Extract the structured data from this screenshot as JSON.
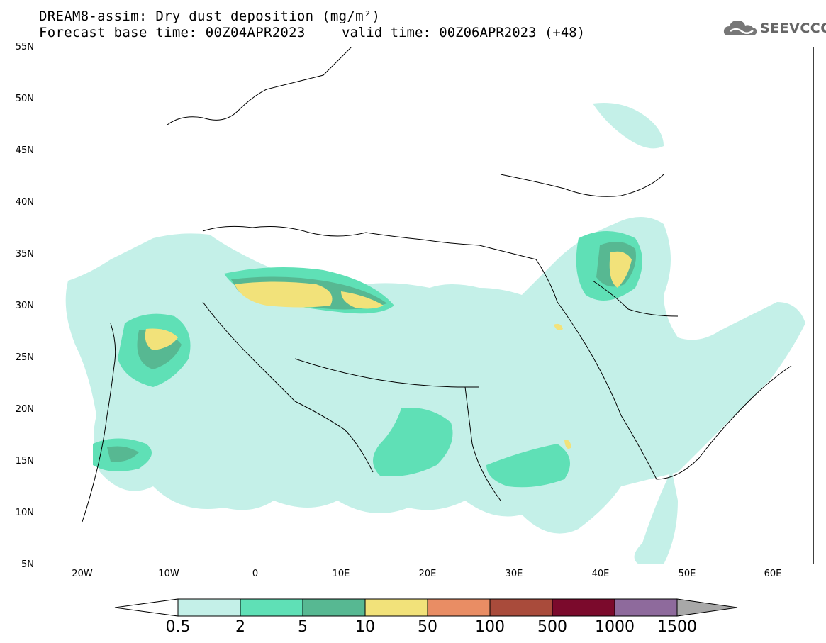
{
  "header": {
    "title_line1": "DREAM8-assim: Dry dust deposition (mg/m²)",
    "title_line2": "Forecast base time: 00Z04APR2023",
    "valid_time": "valid time: 00Z06APR2023 (+48)",
    "logo_text": "SEEVCCC"
  },
  "map": {
    "lon_range": [
      -25,
      65
    ],
    "lat_range": [
      5,
      55
    ],
    "lat_ticks": [
      "55N",
      "50N",
      "45N",
      "40N",
      "35N",
      "30N",
      "25N",
      "20N",
      "15N",
      "10N",
      "5N"
    ],
    "lon_ticks": [
      "20W",
      "10W",
      "0",
      "10E",
      "20E",
      "30E",
      "40E",
      "50E",
      "60E"
    ]
  },
  "colorbar": {
    "labels": [
      "0.5",
      "2",
      "5",
      "10",
      "50",
      "100",
      "500",
      "1000",
      "1500"
    ],
    "colors": [
      "#ffffff",
      "#c4f0e8",
      "#5fe0b6",
      "#57b892",
      "#f2e27a",
      "#e98d64",
      "#a94b3b",
      "#7b0a2c",
      "#8e6a9c",
      "#a8a8a8"
    ]
  }
}
